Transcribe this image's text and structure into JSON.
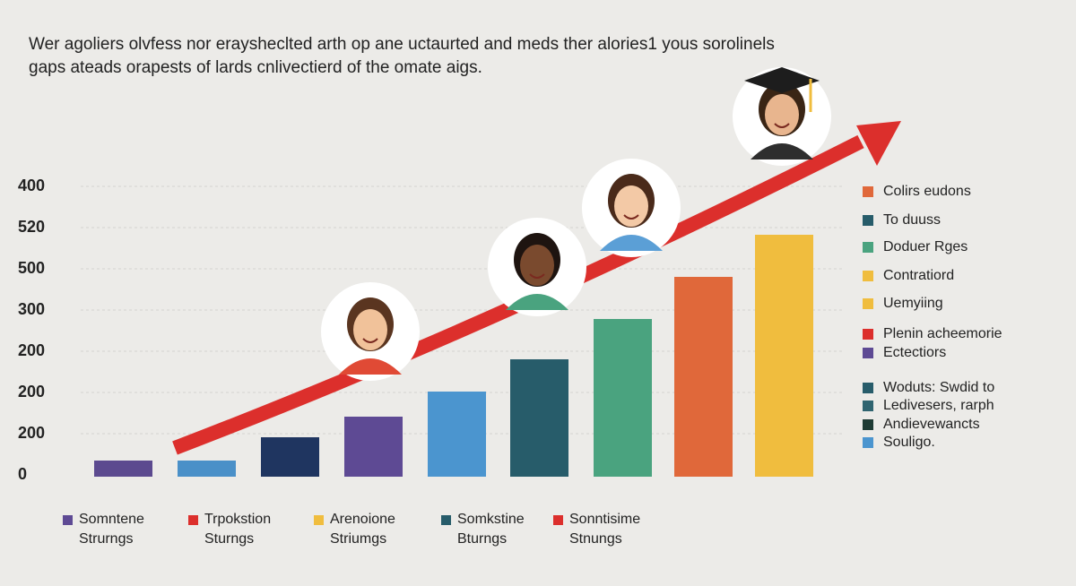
{
  "title": {
    "line1": "Wer agoliers olvfess nor eraysheclted arth op ane uctaurted and meds ther alories1 yous sorolinels",
    "line2": "gaps ateads orapests of lards cnlivectierd of the omate aigs."
  },
  "y_axis_labels": [
    "400",
    "520",
    "500",
    "300",
    "200",
    "200",
    "200",
    "0"
  ],
  "right_legend": [
    "Colirs eudons",
    "To duuss",
    "Doduer Rges",
    "Contratiord",
    "Uemyiing",
    "Plenin acheemorie",
    "Ectectiors",
    "Woduts: Swdid to",
    "Ledivesers, rarph",
    "Andievewancts",
    "Souligo."
  ],
  "bottom_legend": [
    [
      "Somntene",
      "Strurngs"
    ],
    [
      "Trpokstion",
      "Sturngs"
    ],
    [
      "Arenoione",
      "Striumgs"
    ],
    [
      "Somkstine",
      "Bturngs"
    ],
    [
      "Sonntisime",
      "Stnungs"
    ]
  ]
}
